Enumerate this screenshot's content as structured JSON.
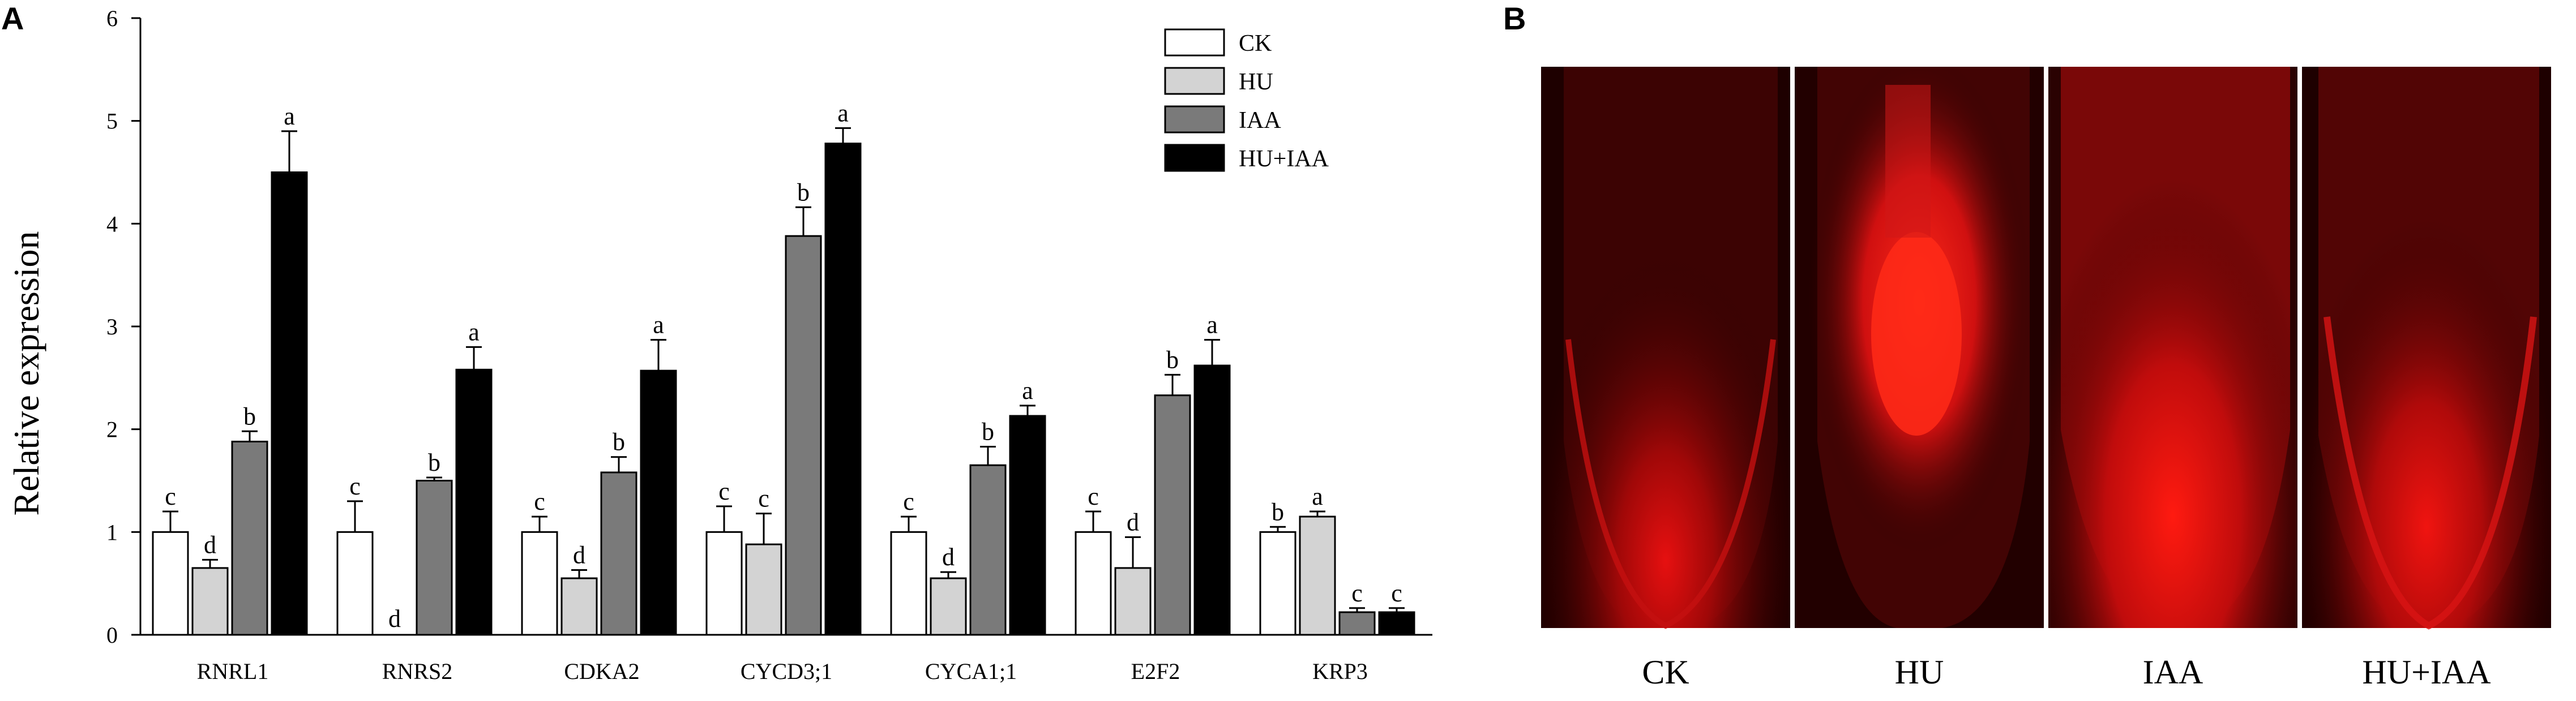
{
  "panel_a": {
    "label": "A"
  },
  "panel_b": {
    "label": "B",
    "images": [
      {
        "caption": "CK",
        "pattern": "ck-root-tip"
      },
      {
        "caption": "HU",
        "pattern": "hu-root-tip"
      },
      {
        "caption": "IAA",
        "pattern": "iaa-root-tip"
      },
      {
        "caption": "HU+IAA",
        "pattern": "hu-iaa-root-tip"
      }
    ]
  },
  "chart_data": {
    "type": "bar",
    "title": "",
    "xlabel": "",
    "ylabel": "Relative expression",
    "ylim": [
      0,
      6
    ],
    "yticks": [
      0,
      1,
      2,
      3,
      4,
      5,
      6
    ],
    "grid": false,
    "legend_position": "top-right",
    "categories": [
      "RNRL1",
      "RNRS2",
      "CDKA2",
      "CYCD3;1",
      "CYCA1;1",
      "E2F2",
      "KRP3"
    ],
    "series": [
      {
        "name": "CK",
        "color": "#ffffff",
        "values": [
          1.0,
          1.0,
          1.0,
          1.0,
          1.0,
          1.0,
          1.0
        ],
        "errors": [
          0.2,
          0.3,
          0.15,
          0.25,
          0.15,
          0.2,
          0.05
        ],
        "letters": [
          "c",
          "c",
          "c",
          "c",
          "c",
          "c",
          "b"
        ]
      },
      {
        "name": "HU",
        "color": "#d3d3d3",
        "values": [
          0.65,
          0.0,
          0.55,
          0.88,
          0.55,
          0.65,
          1.15
        ],
        "errors": [
          0.08,
          0.0,
          0.08,
          0.3,
          0.06,
          0.3,
          0.05
        ],
        "letters": [
          "d",
          "d",
          "d",
          "c",
          "d",
          "d",
          "a"
        ]
      },
      {
        "name": "IAA",
        "color": "#7a7a7a",
        "values": [
          1.88,
          1.5,
          1.58,
          3.88,
          1.65,
          2.33,
          0.22
        ],
        "errors": [
          0.1,
          0.03,
          0.15,
          0.28,
          0.18,
          0.2,
          0.04
        ],
        "letters": [
          "b",
          "b",
          "b",
          "b",
          "b",
          "b",
          "c"
        ]
      },
      {
        "name": "HU+IAA",
        "color": "#000000",
        "values": [
          4.5,
          2.58,
          2.57,
          4.78,
          2.13,
          2.62,
          0.22
        ],
        "errors": [
          0.4,
          0.22,
          0.3,
          0.15,
          0.1,
          0.25,
          0.04
        ],
        "letters": [
          "a",
          "a",
          "a",
          "a",
          "a",
          "a",
          "c"
        ]
      }
    ]
  }
}
